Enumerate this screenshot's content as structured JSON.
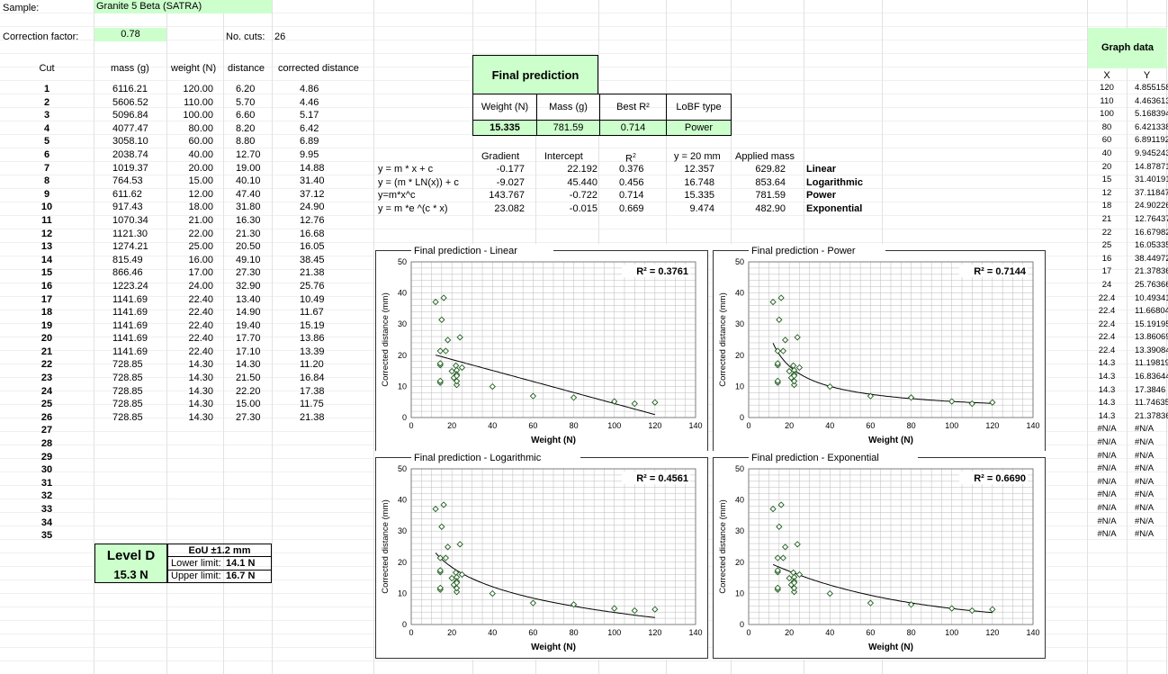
{
  "sample": {
    "label": "Sample:",
    "value": "Granite 5 Beta (SATRA)"
  },
  "correction": {
    "label": "Correction factor:",
    "value": "0.78",
    "cuts_label": "No. cuts:",
    "cuts_value": "26"
  },
  "headers": {
    "cut": "Cut",
    "mass": "mass (g)",
    "weight": "weight (N)",
    "distance": "distance",
    "corrected": "corrected distance"
  },
  "cuts": [
    [
      "1",
      "6116.21",
      "120.00",
      "6.20",
      "4.86"
    ],
    [
      "2",
      "5606.52",
      "110.00",
      "5.70",
      "4.46"
    ],
    [
      "3",
      "5096.84",
      "100.00",
      "6.60",
      "5.17"
    ],
    [
      "4",
      "4077.47",
      "80.00",
      "8.20",
      "6.42"
    ],
    [
      "5",
      "3058.10",
      "60.00",
      "8.80",
      "6.89"
    ],
    [
      "6",
      "2038.74",
      "40.00",
      "12.70",
      "9.95"
    ],
    [
      "7",
      "1019.37",
      "20.00",
      "19.00",
      "14.88"
    ],
    [
      "8",
      "764.53",
      "15.00",
      "40.10",
      "31.40"
    ],
    [
      "9",
      "611.62",
      "12.00",
      "47.40",
      "37.12"
    ],
    [
      "10",
      "917.43",
      "18.00",
      "31.80",
      "24.90"
    ],
    [
      "11",
      "1070.34",
      "21.00",
      "16.30",
      "12.76"
    ],
    [
      "12",
      "1121.30",
      "22.00",
      "21.30",
      "16.68"
    ],
    [
      "13",
      "1274.21",
      "25.00",
      "20.50",
      "16.05"
    ],
    [
      "14",
      "815.49",
      "16.00",
      "49.10",
      "38.45"
    ],
    [
      "15",
      "866.46",
      "17.00",
      "27.30",
      "21.38"
    ],
    [
      "16",
      "1223.24",
      "24.00",
      "32.90",
      "25.76"
    ],
    [
      "17",
      "1141.69",
      "22.40",
      "13.40",
      "10.49"
    ],
    [
      "18",
      "1141.69",
      "22.40",
      "14.90",
      "11.67"
    ],
    [
      "19",
      "1141.69",
      "22.40",
      "19.40",
      "15.19"
    ],
    [
      "20",
      "1141.69",
      "22.40",
      "17.70",
      "13.86"
    ],
    [
      "21",
      "1141.69",
      "22.40",
      "17.10",
      "13.39"
    ],
    [
      "22",
      "728.85",
      "14.30",
      "14.30",
      "11.20"
    ],
    [
      "23",
      "728.85",
      "14.30",
      "21.50",
      "16.84"
    ],
    [
      "24",
      "728.85",
      "14.30",
      "22.20",
      "17.38"
    ],
    [
      "25",
      "728.85",
      "14.30",
      "15.00",
      "11.75"
    ],
    [
      "26",
      "728.85",
      "14.30",
      "27.30",
      "21.38"
    ],
    [
      "27"
    ],
    [
      "28"
    ],
    [
      "29"
    ],
    [
      "30"
    ],
    [
      "31"
    ],
    [
      "32"
    ],
    [
      "33"
    ],
    [
      "34"
    ],
    [
      "35"
    ]
  ],
  "final": {
    "title": "Final prediction",
    "h_weight": "Weight (N)",
    "h_mass": "Mass (g)",
    "h_r2": "Best R²",
    "h_type": "LoBF type",
    "weight": "15.335",
    "mass": "781.59",
    "r2": "0.714",
    "type": "Power"
  },
  "fits": {
    "h_gradient": "Gradient",
    "h_intercept": "Intercept",
    "h_r2": "R2",
    "h_y20": "y = 20 mm",
    "h_mass": "Applied mass",
    "rows": [
      [
        "y = m * x + c",
        "-0.177",
        "22.192",
        "0.376",
        "12.357",
        "629.82",
        "Linear"
      ],
      [
        "y = (m * LN(x)) + c",
        "-9.027",
        "45.440",
        "0.456",
        "16.748",
        "853.64",
        "Logarithmic"
      ],
      [
        "y=m*x^c",
        "143.767",
        "-0.722",
        "0.714",
        "15.335",
        "781.59",
        "Power"
      ],
      [
        "y = m *e ^(c * x)",
        "23.082",
        "-0.015",
        "0.669",
        "9.474",
        "482.90",
        "Exponential"
      ]
    ]
  },
  "level": {
    "title": "Level D",
    "value": "15.3 N",
    "eou": "EoU ±1.2 mm",
    "lower_label": "Lower limit:",
    "lower": "14.1 N",
    "upper_label": "Upper limit:",
    "upper": "16.7 N"
  },
  "graph_data": {
    "title": "Graph data",
    "x_label": "X",
    "y_label": "Y",
    "rows": [
      [
        "120",
        "4.855158"
      ],
      [
        "110",
        "4.463613"
      ],
      [
        "100",
        "5.168394"
      ],
      [
        "80",
        "6.421338"
      ],
      [
        "60",
        "6.891192"
      ],
      [
        "40",
        "9.945243"
      ],
      [
        "20",
        "14.87871"
      ],
      [
        "15",
        "31.40191"
      ],
      [
        "12",
        "37.11847"
      ],
      [
        "18",
        "24.90226"
      ],
      [
        "21",
        "12.76437"
      ],
      [
        "22",
        "16.67982"
      ],
      [
        "25",
        "16.05335"
      ],
      [
        "16",
        "38.44972"
      ],
      [
        "17",
        "21.37836"
      ],
      [
        "24",
        "25.76366"
      ],
      [
        "22.4",
        "10.49341"
      ],
      [
        "22.4",
        "11.66804"
      ],
      [
        "22.4",
        "15.19195"
      ],
      [
        "22.4",
        "13.86069"
      ],
      [
        "22.4",
        "13.39084"
      ],
      [
        "14.3",
        "11.19819"
      ],
      [
        "14.3",
        "16.83644"
      ],
      [
        "14.3",
        "17.3846"
      ],
      [
        "14.3",
        "11.74635"
      ],
      [
        "14.3",
        "21.37836"
      ],
      [
        "#N/A",
        "#N/A"
      ],
      [
        "#N/A",
        "#N/A"
      ],
      [
        "#N/A",
        "#N/A"
      ],
      [
        "#N/A",
        "#N/A"
      ],
      [
        "#N/A",
        "#N/A"
      ],
      [
        "#N/A",
        "#N/A"
      ],
      [
        "#N/A",
        "#N/A"
      ],
      [
        "#N/A",
        "#N/A"
      ],
      [
        "#N/A",
        "#N/A"
      ]
    ]
  },
  "chart_data": [
    {
      "type": "scatter",
      "title": "Final prediction - Linear",
      "r2": "R² = 0.3761",
      "fit": "linear",
      "m": -0.177,
      "c": 22.192,
      "xlabel": "Weight (N)",
      "ylabel": "Corrected distance (mm)",
      "xlim": [
        0,
        140
      ],
      "ylim": [
        0,
        50
      ],
      "xticks": [
        "0",
        "20",
        "40",
        "60",
        "80",
        "100",
        "120",
        "140"
      ],
      "yticks": [
        "0",
        "10",
        "20",
        "30",
        "40",
        "50"
      ]
    },
    {
      "type": "scatter",
      "title": "Final prediction - Power",
      "r2": "R² = 0.7144",
      "fit": "power",
      "m": 143.767,
      "c": -0.722,
      "xlabel": "Weight (N)",
      "ylabel": "Corrected distance (mm)",
      "xlim": [
        0,
        140
      ],
      "ylim": [
        0,
        50
      ],
      "xticks": [
        "0",
        "20",
        "40",
        "60",
        "80",
        "100",
        "120",
        "140"
      ],
      "yticks": [
        "0",
        "10",
        "20",
        "30",
        "40",
        "50"
      ]
    },
    {
      "type": "scatter",
      "title": "Final prediction - Logarithmic",
      "r2": "R² = 0.4561",
      "fit": "log",
      "m": -9.027,
      "c": 45.44,
      "xlabel": "Weight (N)",
      "ylabel": "Corrected distance (mm)",
      "xlim": [
        0,
        140
      ],
      "ylim": [
        0,
        50
      ],
      "xticks": [
        "0",
        "20",
        "40",
        "60",
        "80",
        "100",
        "120",
        "140"
      ],
      "yticks": [
        "0",
        "10",
        "20",
        "30",
        "40",
        "50"
      ]
    },
    {
      "type": "scatter",
      "title": "Final prediction - Exponential",
      "r2": "R² = 0.6690",
      "fit": "exp",
      "m": 23.082,
      "c": -0.015,
      "xlabel": "Weight (N)",
      "ylabel": "Corrected distance (mm)",
      "xlim": [
        0,
        140
      ],
      "ylim": [
        0,
        50
      ],
      "xticks": [
        "0",
        "20",
        "40",
        "60",
        "80",
        "100",
        "120",
        "140"
      ],
      "yticks": [
        "0",
        "10",
        "20",
        "30",
        "40",
        "50"
      ]
    }
  ],
  "colors": {
    "green": "#ccffcc",
    "marker": "#1e5c1e"
  }
}
